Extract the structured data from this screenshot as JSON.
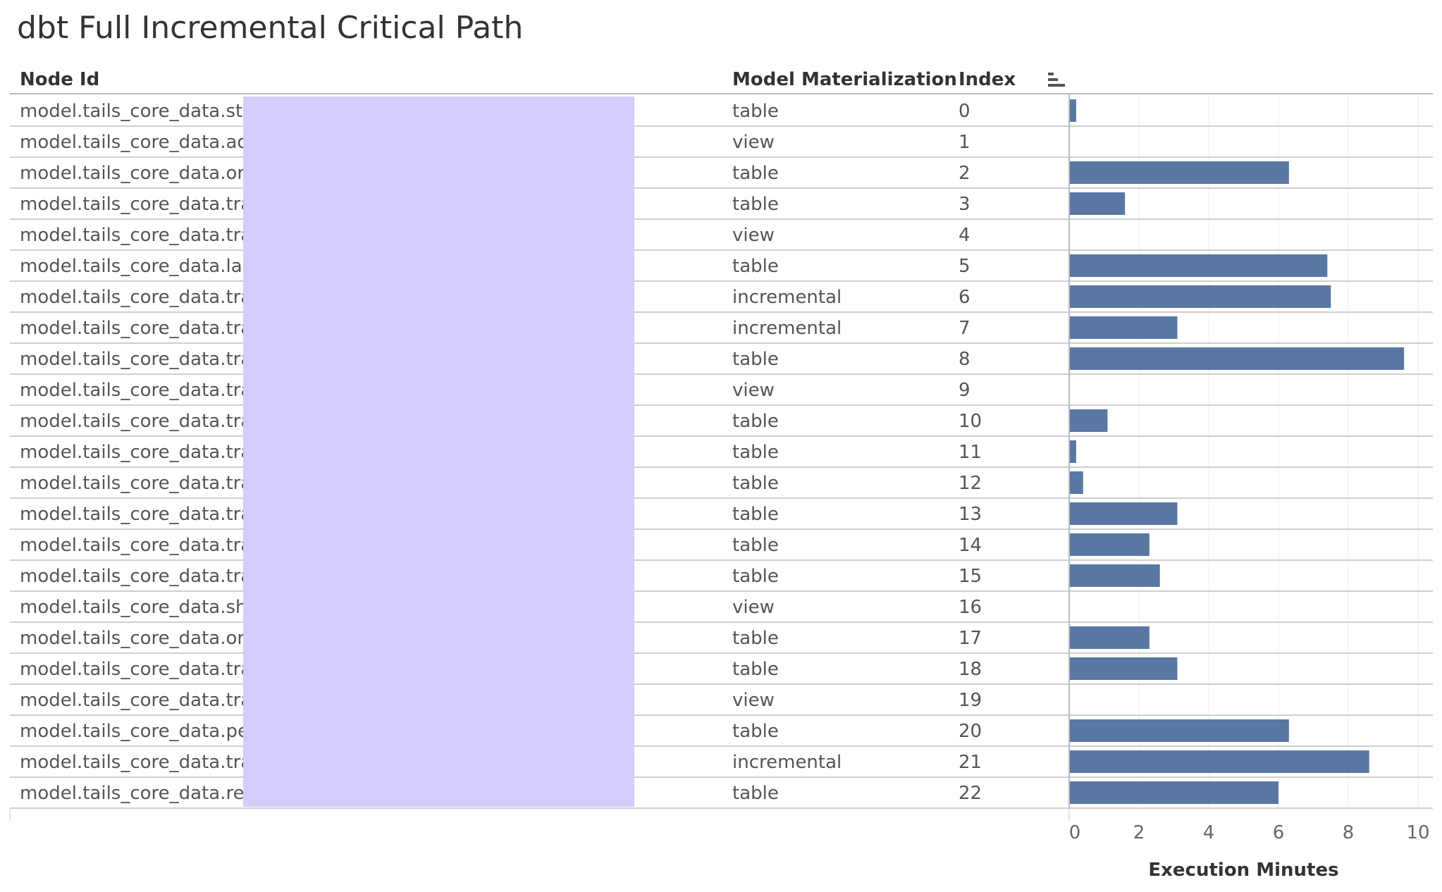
{
  "title": "dbt Full Incremental Critical Path",
  "columns": {
    "node_id": "Node Id",
    "materialization": "Model Materialization",
    "index": "Index"
  },
  "sort_icon": "sort-bars-icon",
  "colors": {
    "bar": "#5878a3",
    "redaction": "#d4ccfa",
    "row_line": "#cfcfcf",
    "grid": "#ececec"
  },
  "chart_data": {
    "type": "bar",
    "orientation": "horizontal",
    "xlabel": "Execution Minutes",
    "xlim": [
      0,
      10
    ],
    "xticks": [
      0,
      2,
      4,
      6,
      8,
      10
    ],
    "grid": true,
    "rows": [
      {
        "node_id": "model.tails_core_data.st",
        "materialization": "table",
        "index": "0",
        "value": 0.2
      },
      {
        "node_id": "model.tails_core_data.ad",
        "materialization": "view",
        "index": "1",
        "value": 0.0
      },
      {
        "node_id": "model.tails_core_data.or",
        "materialization": "table",
        "index": "2",
        "value": 6.3
      },
      {
        "node_id": "model.tails_core_data.tra",
        "materialization": "table",
        "index": "3",
        "value": 1.6
      },
      {
        "node_id": "model.tails_core_data.tra",
        "materialization": "view",
        "index": "4",
        "value": 0.0
      },
      {
        "node_id": "model.tails_core_data.lab",
        "materialization": "table",
        "index": "5",
        "value": 7.4
      },
      {
        "node_id": "model.tails_core_data.tra",
        "materialization": "incremental",
        "index": "6",
        "value": 7.5
      },
      {
        "node_id": "model.tails_core_data.tra",
        "materialization": "incremental",
        "index": "7",
        "value": 3.1
      },
      {
        "node_id": "model.tails_core_data.tra",
        "materialization": "table",
        "index": "8",
        "value": 9.6
      },
      {
        "node_id": "model.tails_core_data.tra",
        "materialization": "view",
        "index": "9",
        "value": 0.0
      },
      {
        "node_id": "model.tails_core_data.tra",
        "materialization": "table",
        "index": "10",
        "value": 1.1
      },
      {
        "node_id": "model.tails_core_data.tra",
        "materialization": "table",
        "index": "11",
        "value": 0.2
      },
      {
        "node_id": "model.tails_core_data.tra",
        "materialization": "table",
        "index": "12",
        "value": 0.4
      },
      {
        "node_id": "model.tails_core_data.tra",
        "materialization": "table",
        "index": "13",
        "value": 3.1
      },
      {
        "node_id": "model.tails_core_data.tra",
        "materialization": "table",
        "index": "14",
        "value": 2.3
      },
      {
        "node_id": "model.tails_core_data.tra",
        "materialization": "table",
        "index": "15",
        "value": 2.6
      },
      {
        "node_id": "model.tails_core_data.sh",
        "materialization": "view",
        "index": "16",
        "value": 0.0
      },
      {
        "node_id": "model.tails_core_data.or",
        "materialization": "table",
        "index": "17",
        "value": 2.3
      },
      {
        "node_id": "model.tails_core_data.tra",
        "materialization": "table",
        "index": "18",
        "value": 3.1
      },
      {
        "node_id": "model.tails_core_data.tra",
        "materialization": "view",
        "index": "19",
        "value": 0.0
      },
      {
        "node_id": "model.tails_core_data.pe",
        "materialization": "table",
        "index": "20",
        "value": 6.3
      },
      {
        "node_id": "model.tails_core_data.tra",
        "materialization": "incremental",
        "index": "21",
        "value": 8.6
      },
      {
        "node_id": "model.tails_core_data.re",
        "materialization": "table",
        "index": "22",
        "value": 6.0
      }
    ]
  }
}
